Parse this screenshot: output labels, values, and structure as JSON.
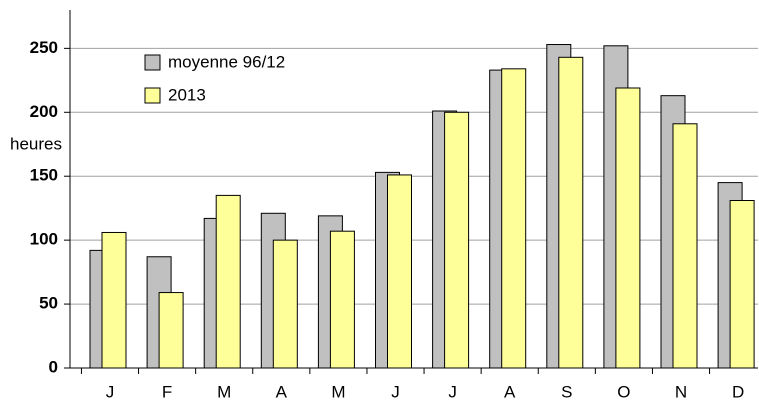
{
  "chart_data": {
    "type": "bar",
    "y_label": "heures",
    "categories": [
      "J",
      "F",
      "M",
      "A",
      "M",
      "J",
      "J",
      "A",
      "S",
      "O",
      "N",
      "D"
    ],
    "series": [
      {
        "name": "moyenne 96/12",
        "color": "#c0c0c0",
        "values": [
          92,
          87,
          117,
          121,
          119,
          153,
          201,
          233,
          253,
          252,
          213,
          145
        ]
      },
      {
        "name": "2013",
        "color": "#ffff99",
        "values": [
          106,
          59,
          135,
          100,
          107,
          151,
          200,
          234,
          243,
          219,
          191,
          131
        ]
      }
    ],
    "ylim": [
      0,
      280
    ],
    "yticks": [
      0,
      50,
      100,
      150,
      200,
      250
    ],
    "grid": true
  }
}
